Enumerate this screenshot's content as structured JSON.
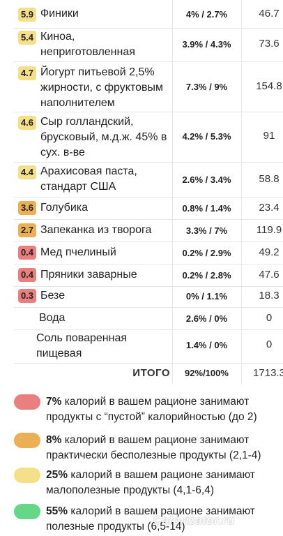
{
  "colors": {
    "red": "#ea7f7f",
    "orange": "#ebaf55",
    "yellow": "#f5e08a",
    "green": "#64d887"
  },
  "rows": [
    {
      "score": "5.9",
      "color": "#f5e08a",
      "name": "Финики",
      "pct": "4% / 2.7%",
      "kcal": "46.7"
    },
    {
      "score": "5.4",
      "color": "#f5e08a",
      "name": "Киноа, неприготовленная",
      "pct": "3.9% / 4.3%",
      "kcal": "73.6"
    },
    {
      "score": "4.7",
      "color": "#f5e08a",
      "name": "Йогурт питьевой 2,5% жирности, с фруктовым наполнителем",
      "pct": "7.3% / 9%",
      "kcal": "154.8"
    },
    {
      "score": "4.6",
      "color": "#f5e08a",
      "name": "Сыр голландский, брусковый, м.д.ж. 45% в сух. в-ве",
      "pct": "4.2% / 5.3%",
      "kcal": "91"
    },
    {
      "score": "4.4",
      "color": "#f5e08a",
      "name": "Арахисовая паста, стандарт США",
      "pct": "2.6% / 3.4%",
      "kcal": "58.8"
    },
    {
      "score": "3.6",
      "color": "#ebaf55",
      "name": "Голубика",
      "pct": "0.8% / 1.4%",
      "kcal": "23.4"
    },
    {
      "score": "2.7",
      "color": "#ebaf55",
      "name": "Запеканка из творога",
      "pct": "3.3% / 7%",
      "kcal": "119.9"
    },
    {
      "score": "0.4",
      "color": "#ea7f7f",
      "name": "Мед пчелиный",
      "pct": "0.2% / 2.9%",
      "kcal": "49.2"
    },
    {
      "score": "0.4",
      "color": "#ea7f7f",
      "name": "Пряники заварные",
      "pct": "0.2% / 2.8%",
      "kcal": "47.6"
    },
    {
      "score": "0.3",
      "color": "#ea7f7f",
      "name": "Безе",
      "pct": "0% / 1.1%",
      "kcal": "18.3"
    },
    {
      "score": "",
      "color": "",
      "name": "Вода",
      "pct": "2.6% / 0%",
      "kcal": "0"
    },
    {
      "score": "",
      "color": "",
      "name": "Соль поваренная пищевая",
      "pct": "1.4% / 0%",
      "kcal": "0"
    }
  ],
  "total": {
    "label": "ИТОГО",
    "pct": "92%/100%",
    "kcal": "1713.3"
  },
  "legend": [
    {
      "color": "#ea7f7f",
      "percent": "7%",
      "line1": " калорий в вашем рационе занимают",
      "line2": "продукты с “пустой” калорийностью (до 2)"
    },
    {
      "color": "#ebaf55",
      "percent": "8%",
      "line1": " калорий в вашем рационе занимают",
      "line2": "практически бесполезные продукты (2,1-4)"
    },
    {
      "color": "#f5e08a",
      "percent": "25%",
      "line1": " калорий в вашем рационе занимают",
      "line2": "малополезные продукты (4,1-6,4)"
    },
    {
      "color": "#64d887",
      "percent": "55%",
      "line1": " калорий в вашем рационе занимают",
      "line2": "полезные продукты (6,5-14)"
    }
  ],
  "watermark": "Calorizator.ru"
}
